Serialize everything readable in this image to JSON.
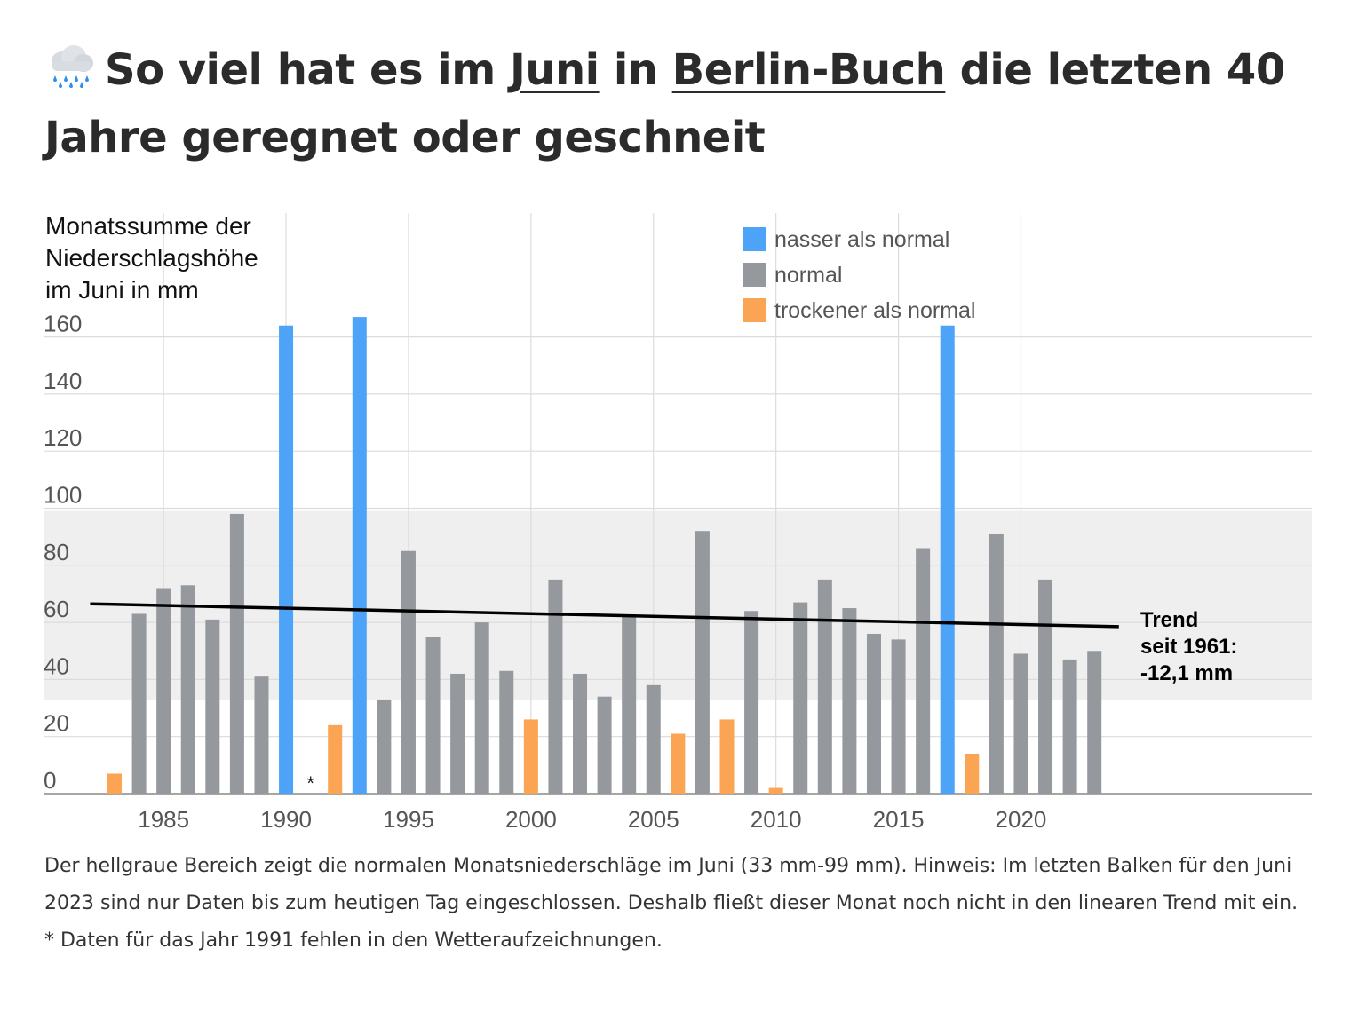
{
  "title": {
    "prefix": "So viel hat es im ",
    "month": "Juni",
    "mid": " in ",
    "station": "Berlin-Buch",
    "suffix": " die letzten 40 Jahre geregnet oder geschneit",
    "icon": "rain-cloud-icon"
  },
  "chart_data": {
    "type": "bar",
    "ylabel": [
      "Monatssumme der",
      "Niederschlagshöhe",
      "im Juni in mm"
    ],
    "ylim": [
      0,
      160
    ],
    "yticks": [
      0,
      20,
      40,
      60,
      80,
      100,
      120,
      140,
      160
    ],
    "xticks": [
      1985,
      1990,
      1995,
      2000,
      2005,
      2010,
      2015,
      2020
    ],
    "grid": true,
    "normal_band": [
      33,
      99
    ],
    "colors": {
      "wet": "#4ca3f7",
      "normal": "#95999e",
      "dry": "#fba453",
      "trend": "#000000",
      "band": "#efefef"
    },
    "legend": {
      "position": "top-center",
      "items": [
        {
          "key": "wet",
          "label": "nasser als normal"
        },
        {
          "key": "normal",
          "label": "normal"
        },
        {
          "key": "dry",
          "label": "trockener als normal"
        }
      ]
    },
    "bars": [
      {
        "year": 1983,
        "value": 7,
        "cat": "dry"
      },
      {
        "year": 1984,
        "value": 63,
        "cat": "normal"
      },
      {
        "year": 1985,
        "value": 72,
        "cat": "normal"
      },
      {
        "year": 1986,
        "value": 73,
        "cat": "normal"
      },
      {
        "year": 1987,
        "value": 61,
        "cat": "normal"
      },
      {
        "year": 1988,
        "value": 98,
        "cat": "normal"
      },
      {
        "year": 1989,
        "value": 41,
        "cat": "normal"
      },
      {
        "year": 1990,
        "value": 164,
        "cat": "wet"
      },
      {
        "year": 1992,
        "value": 24,
        "cat": "dry"
      },
      {
        "year": 1993,
        "value": 167,
        "cat": "wet"
      },
      {
        "year": 1994,
        "value": 33,
        "cat": "normal"
      },
      {
        "year": 1995,
        "value": 85,
        "cat": "normal"
      },
      {
        "year": 1996,
        "value": 55,
        "cat": "normal"
      },
      {
        "year": 1997,
        "value": 42,
        "cat": "normal"
      },
      {
        "year": 1998,
        "value": 60,
        "cat": "normal"
      },
      {
        "year": 1999,
        "value": 43,
        "cat": "normal"
      },
      {
        "year": 2000,
        "value": 26,
        "cat": "dry"
      },
      {
        "year": 2001,
        "value": 75,
        "cat": "normal"
      },
      {
        "year": 2002,
        "value": 42,
        "cat": "normal"
      },
      {
        "year": 2003,
        "value": 34,
        "cat": "normal"
      },
      {
        "year": 2004,
        "value": 62,
        "cat": "normal"
      },
      {
        "year": 2005,
        "value": 38,
        "cat": "normal"
      },
      {
        "year": 2006,
        "value": 21,
        "cat": "dry"
      },
      {
        "year": 2007,
        "value": 92,
        "cat": "normal"
      },
      {
        "year": 2008,
        "value": 26,
        "cat": "dry"
      },
      {
        "year": 2009,
        "value": 64,
        "cat": "normal"
      },
      {
        "year": 2010,
        "value": 2,
        "cat": "dry"
      },
      {
        "year": 2011,
        "value": 67,
        "cat": "normal"
      },
      {
        "year": 2012,
        "value": 75,
        "cat": "normal"
      },
      {
        "year": 2013,
        "value": 65,
        "cat": "normal"
      },
      {
        "year": 2014,
        "value": 56,
        "cat": "normal"
      },
      {
        "year": 2015,
        "value": 54,
        "cat": "normal"
      },
      {
        "year": 2016,
        "value": 86,
        "cat": "normal"
      },
      {
        "year": 2017,
        "value": 164,
        "cat": "wet"
      },
      {
        "year": 2018,
        "value": 14,
        "cat": "dry"
      },
      {
        "year": 2019,
        "value": 91,
        "cat": "normal"
      },
      {
        "year": 2020,
        "value": 49,
        "cat": "normal"
      },
      {
        "year": 2021,
        "value": 75,
        "cat": "normal"
      },
      {
        "year": 2022,
        "value": 47,
        "cat": "normal"
      },
      {
        "year": 2023,
        "value": 50,
        "cat": "normal"
      }
    ],
    "missing": [
      {
        "year": 1991,
        "marker": "*"
      }
    ],
    "trend": {
      "from": {
        "year": 1982,
        "value": 66.5
      },
      "to": {
        "year": 2024,
        "value": 58.5
      },
      "label": [
        "Trend",
        "seit 1961:",
        "-12,1 mm"
      ]
    }
  },
  "notes": {
    "range": "Der hellgraue Bereich zeigt die normalen Monatsniederschläge im Juni (33 mm-99 mm). Hinweis: Im letzten Balken für den Juni 2023 sind nur Daten bis zum heutigen Tag eingeschlossen. Deshalb fließt dieser Monat noch nicht in den linearen Trend mit ein.",
    "missing": "* Daten für das Jahr 1991 fehlen in den Wetteraufzeichnungen."
  }
}
